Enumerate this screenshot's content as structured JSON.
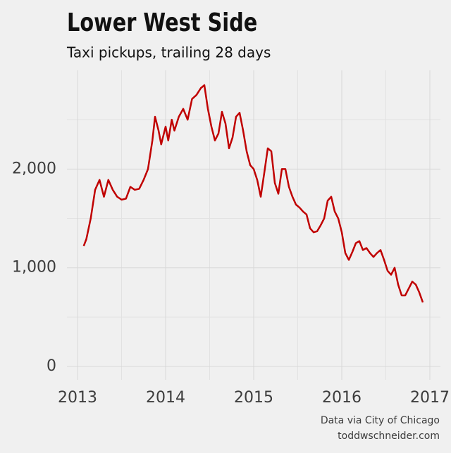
{
  "chart_data": {
    "type": "line",
    "title": "Lower West Side",
    "subtitle": "Taxi pickups, trailing 28 days",
    "source": [
      "Data via City of Chicago",
      "toddwschneider.com"
    ],
    "x": [
      2013.07,
      2013.1,
      2013.15,
      2013.2,
      2013.25,
      2013.3,
      2013.35,
      2013.4,
      2013.45,
      2013.5,
      2013.55,
      2013.6,
      2013.65,
      2013.7,
      2013.75,
      2013.8,
      2013.85,
      2013.88,
      2013.92,
      2013.95,
      2014.0,
      2014.03,
      2014.07,
      2014.1,
      2014.15,
      2014.2,
      2014.25,
      2014.3,
      2014.35,
      2014.4,
      2014.44,
      2014.48,
      2014.52,
      2014.56,
      2014.6,
      2014.64,
      2014.68,
      2014.72,
      2014.76,
      2014.8,
      2014.84,
      2014.88,
      2014.92,
      2014.96,
      2015.0,
      2015.04,
      2015.08,
      2015.12,
      2015.16,
      2015.2,
      2015.24,
      2015.28,
      2015.32,
      2015.36,
      2015.4,
      2015.44,
      2015.48,
      2015.52,
      2015.56,
      2015.6,
      2015.64,
      2015.68,
      2015.72,
      2015.76,
      2015.8,
      2015.84,
      2015.88,
      2015.92,
      2015.96,
      2016.0,
      2016.04,
      2016.08,
      2016.12,
      2016.16,
      2016.2,
      2016.24,
      2016.28,
      2016.32,
      2016.36,
      2016.4,
      2016.44,
      2016.48,
      2016.52,
      2016.56,
      2016.6,
      2016.64,
      2016.68,
      2016.72,
      2016.76,
      2016.8,
      2016.84,
      2016.88,
      2016.92
    ],
    "series": [
      {
        "color": "#c00000",
        "values": [
          1220,
          1290,
          1500,
          1790,
          1890,
          1720,
          1890,
          1790,
          1720,
          1690,
          1700,
          1820,
          1790,
          1800,
          1890,
          2000,
          2290,
          2530,
          2390,
          2250,
          2430,
          2290,
          2500,
          2390,
          2530,
          2610,
          2500,
          2710,
          2750,
          2820,
          2850,
          2610,
          2430,
          2290,
          2360,
          2580,
          2460,
          2210,
          2320,
          2530,
          2570,
          2390,
          2180,
          2040,
          2000,
          1890,
          1720,
          1960,
          2210,
          2180,
          1860,
          1750,
          2000,
          2000,
          1820,
          1720,
          1640,
          1610,
          1570,
          1540,
          1400,
          1360,
          1370,
          1430,
          1500,
          1680,
          1720,
          1570,
          1500,
          1360,
          1150,
          1080,
          1160,
          1250,
          1270,
          1180,
          1200,
          1150,
          1110,
          1150,
          1180,
          1080,
          970,
          930,
          1000,
          830,
          720,
          720,
          790,
          860,
          830,
          750,
          650
        ]
      }
    ],
    "xlim": [
      2012.88,
      2017.12
    ],
    "ylim": [
      -135,
      3000
    ],
    "xticks": [
      2013,
      2014,
      2015,
      2016,
      2017
    ],
    "yticks": [
      0,
      {
        "value": 1000,
        "label": "1,000"
      },
      {
        "value": 2000,
        "label": "2,000"
      }
    ],
    "minor_xticks": [
      2013.5,
      2014.5,
      2015.5,
      2016.5
    ],
    "minor_yticks": [
      500,
      1500,
      2500
    ],
    "grid": true
  }
}
